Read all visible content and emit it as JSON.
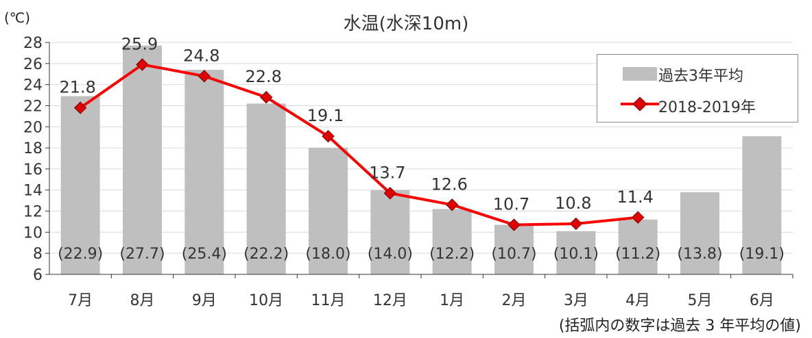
{
  "chart_data": {
    "type": "bar",
    "title": "水温(水深10m)",
    "unit_label": "(℃)",
    "categories": [
      "7月",
      "8月",
      "9月",
      "10月",
      "11月",
      "12月",
      "1月",
      "2月",
      "3月",
      "4月",
      "5月",
      "6月"
    ],
    "ylim": [
      6,
      28
    ],
    "yticks": [
      6,
      8,
      10,
      12,
      14,
      16,
      18,
      20,
      22,
      24,
      26,
      28
    ],
    "grid": true,
    "legend_position": "top-right",
    "series": [
      {
        "name": "過去3年平均",
        "kind": "bar",
        "color": "#bfbfbf",
        "values": [
          22.9,
          27.7,
          25.4,
          22.2,
          18.0,
          14.0,
          12.2,
          10.7,
          10.1,
          11.2,
          13.8,
          19.1
        ],
        "labels": [
          "(22.9)",
          "(27.7)",
          "(25.4)",
          "(22.2)",
          "(18.0)",
          "(14.0)",
          "(12.2)",
          "(10.7)",
          "(10.1)",
          "(11.2)",
          "(13.8)",
          "(19.1)"
        ]
      },
      {
        "name": "2018-2019年",
        "kind": "line",
        "color": "#ff0000",
        "marker_color": "#e00000",
        "values": [
          21.8,
          25.9,
          24.8,
          22.8,
          19.1,
          13.7,
          12.6,
          10.7,
          10.8,
          11.4,
          null,
          null
        ],
        "labels": [
          "21.8",
          "25.9",
          "24.8",
          "22.8",
          "19.1",
          "13.7",
          "12.6",
          "10.7",
          "10.8",
          "11.4",
          "",
          ""
        ]
      }
    ],
    "footnote": "(括弧内の数字は過去 3 年平均の値)"
  }
}
